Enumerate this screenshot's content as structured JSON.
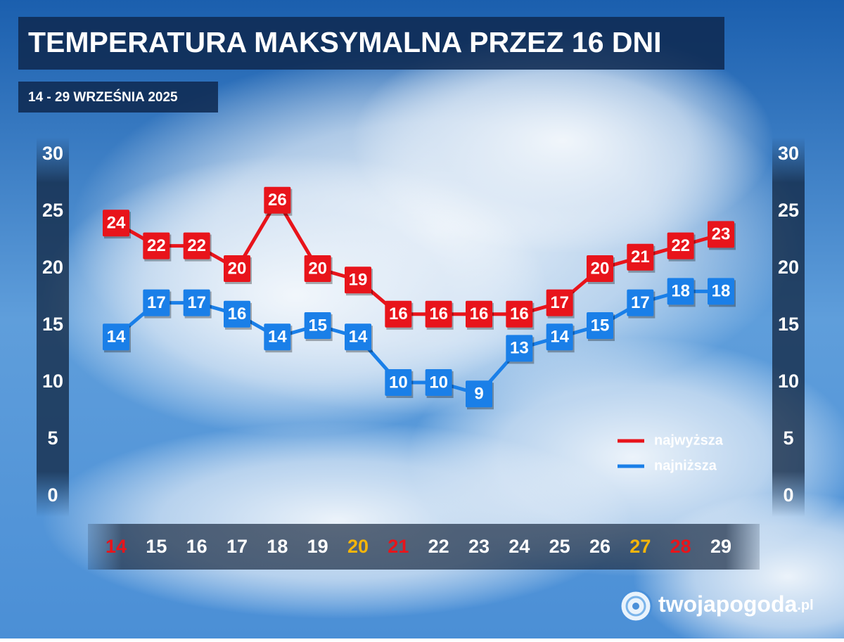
{
  "chart_data": {
    "type": "line",
    "title": "TEMPERATURA MAKSYMALNA PRZEZ 16 DNI",
    "subtitle": "14 - 29 WRZEŚNIA 2025",
    "categories": [
      "14",
      "15",
      "16",
      "17",
      "18",
      "19",
      "20",
      "21",
      "22",
      "23",
      "24",
      "25",
      "26",
      "27",
      "28",
      "29"
    ],
    "category_colors": [
      "#e8141b",
      "#ffffff",
      "#ffffff",
      "#ffffff",
      "#ffffff",
      "#ffffff",
      "#f5b50a",
      "#e8141b",
      "#ffffff",
      "#ffffff",
      "#ffffff",
      "#ffffff",
      "#ffffff",
      "#f5b50a",
      "#e8141b",
      "#ffffff"
    ],
    "series": [
      {
        "name": "najwyższa",
        "color": "#e8141b",
        "values": [
          24,
          22,
          22,
          20,
          26,
          20,
          19,
          16,
          16,
          16,
          16,
          17,
          20,
          21,
          22,
          23
        ]
      },
      {
        "name": "najniższa",
        "color": "#1a7fe8",
        "values": [
          14,
          17,
          17,
          16,
          14,
          15,
          14,
          10,
          10,
          9,
          13,
          14,
          15,
          17,
          18,
          18
        ]
      }
    ],
    "ylim": [
      0,
      30
    ],
    "yticks": [
      0,
      5,
      10,
      15,
      20,
      25,
      30
    ],
    "y2lim": [
      0,
      30
    ],
    "y2ticks": [
      0,
      5,
      10,
      15,
      20,
      25,
      30
    ],
    "legend": "lower-right"
  },
  "brand": {
    "name": "twojapogoda",
    "suffix": ".pl"
  }
}
